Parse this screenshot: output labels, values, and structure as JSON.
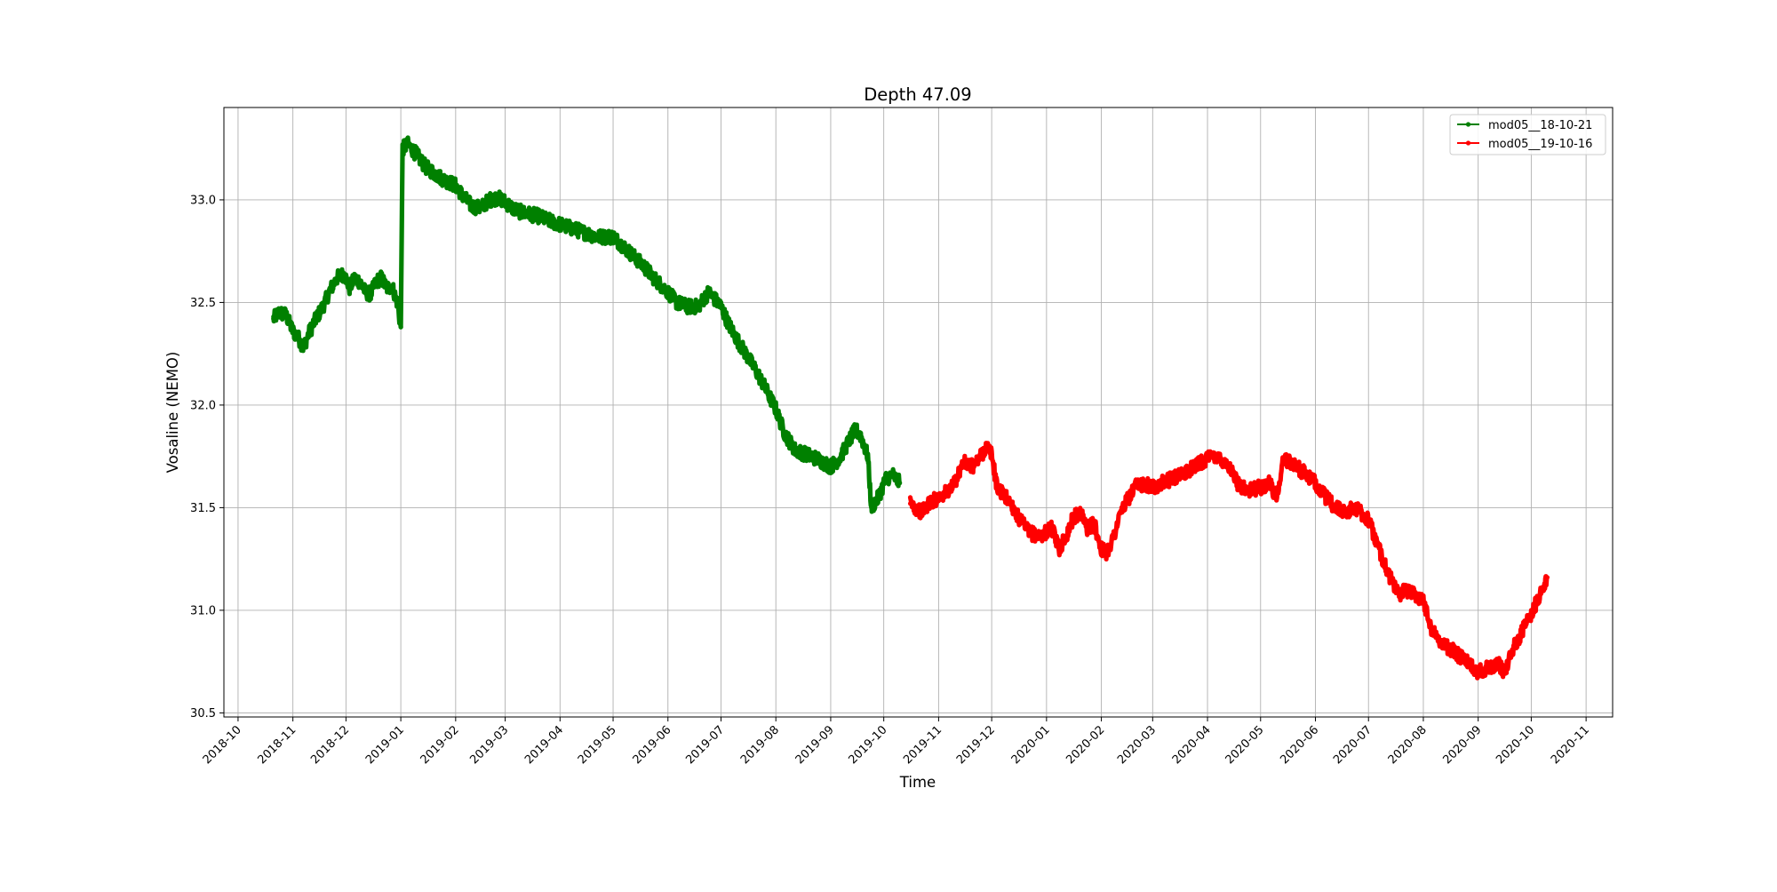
{
  "chart_data": {
    "type": "line",
    "title": "Depth 47.09",
    "xlabel": "Time",
    "ylabel": "Vosaline (NEMO)",
    "x_ticks": [
      "2018-10",
      "2018-11",
      "2018-12",
      "2019-01",
      "2019-02",
      "2019-03",
      "2019-04",
      "2019-05",
      "2019-06",
      "2019-07",
      "2019-08",
      "2019-09",
      "2019-10",
      "2019-11",
      "2019-12",
      "2020-01",
      "2020-02",
      "2020-03",
      "2020-04",
      "2020-05",
      "2020-06",
      "2020-07",
      "2020-08",
      "2020-09",
      "2020-10",
      "2020-11"
    ],
    "y_ticks": [
      "30.5",
      "31.0",
      "31.5",
      "32.0",
      "32.5",
      "33.0"
    ],
    "xlim": [
      "2018-09-23",
      "2020-11-16"
    ],
    "ylim": [
      30.48,
      33.45
    ],
    "grid": true,
    "legend_position": "top-right",
    "series": [
      {
        "name": "mod05__18-10-21",
        "color": "#008000",
        "x": [
          "2018-10-21",
          "2018-10-24",
          "2018-10-28",
          "2018-11-01",
          "2018-11-04",
          "2018-11-07",
          "2018-11-10",
          "2018-11-14",
          "2018-11-18",
          "2018-11-22",
          "2018-11-26",
          "2018-11-30",
          "2018-12-03",
          "2018-12-06",
          "2018-12-09",
          "2018-12-12",
          "2018-12-15",
          "2018-12-18",
          "2018-12-21",
          "2018-12-24",
          "2018-12-27",
          "2018-12-30",
          "2019-01-01",
          "2019-01-02",
          "2019-01-05",
          "2019-01-10",
          "2019-01-15",
          "2019-01-20",
          "2019-01-25",
          "2019-02-01",
          "2019-02-05",
          "2019-02-10",
          "2019-02-15",
          "2019-02-20",
          "2019-02-25",
          "2019-03-01",
          "2019-03-05",
          "2019-03-10",
          "2019-03-15",
          "2019-03-20",
          "2019-03-25",
          "2019-04-01",
          "2019-04-08",
          "2019-04-15",
          "2019-04-22",
          "2019-05-01",
          "2019-05-06",
          "2019-05-12",
          "2019-05-18",
          "2019-05-24",
          "2019-06-01",
          "2019-06-06",
          "2019-06-12",
          "2019-06-18",
          "2019-06-24",
          "2019-07-01",
          "2019-07-05",
          "2019-07-10",
          "2019-07-15",
          "2019-07-20",
          "2019-07-25",
          "2019-08-01",
          "2019-08-06",
          "2019-08-12",
          "2019-08-18",
          "2019-08-24",
          "2019-09-01",
          "2019-09-06",
          "2019-09-11",
          "2019-09-15",
          "2019-09-18",
          "2019-09-22",
          "2019-09-24",
          "2019-09-28",
          "2019-10-02",
          "2019-10-06",
          "2019-10-10"
        ],
        "y": [
          32.42,
          32.45,
          32.44,
          32.36,
          32.33,
          32.28,
          32.35,
          32.42,
          32.48,
          32.56,
          32.62,
          32.64,
          32.57,
          32.62,
          32.6,
          32.55,
          32.54,
          32.6,
          32.62,
          32.57,
          32.58,
          32.5,
          32.38,
          33.25,
          33.27,
          33.22,
          33.16,
          33.13,
          33.1,
          33.07,
          33.02,
          32.97,
          32.96,
          33.0,
          33.01,
          32.99,
          32.96,
          32.94,
          32.93,
          32.92,
          32.9,
          32.88,
          32.86,
          32.84,
          32.82,
          32.82,
          32.78,
          32.73,
          32.68,
          32.62,
          32.55,
          32.5,
          32.48,
          32.48,
          32.55,
          32.48,
          32.4,
          32.32,
          32.25,
          32.18,
          32.1,
          31.98,
          31.86,
          31.78,
          31.76,
          31.74,
          31.7,
          31.74,
          31.82,
          31.88,
          31.85,
          31.75,
          31.5,
          31.55,
          31.64,
          31.66,
          31.62
        ]
      },
      {
        "name": "mod05__19-10-16",
        "color": "#ff0000",
        "x": [
          "2019-10-16",
          "2019-10-22",
          "2019-10-28",
          "2019-11-03",
          "2019-11-09",
          "2019-11-15",
          "2019-11-20",
          "2019-11-24",
          "2019-11-28",
          "2019-12-01",
          "2019-12-04",
          "2019-12-08",
          "2019-12-12",
          "2019-12-16",
          "2019-12-22",
          "2019-12-28",
          "2020-01-04",
          "2020-01-08",
          "2020-01-12",
          "2020-01-16",
          "2020-01-20",
          "2020-01-24",
          "2020-01-28",
          "2020-02-01",
          "2020-02-04",
          "2020-02-08",
          "2020-02-12",
          "2020-02-16",
          "2020-02-20",
          "2020-02-25",
          "2020-03-01",
          "2020-03-06",
          "2020-03-12",
          "2020-03-18",
          "2020-03-24",
          "2020-04-01",
          "2020-04-06",
          "2020-04-12",
          "2020-04-18",
          "2020-04-24",
          "2020-05-01",
          "2020-05-06",
          "2020-05-10",
          "2020-05-14",
          "2020-05-19",
          "2020-05-24",
          "2020-06-01",
          "2020-06-06",
          "2020-06-12",
          "2020-06-18",
          "2020-06-24",
          "2020-07-01",
          "2020-07-06",
          "2020-07-12",
          "2020-07-18",
          "2020-07-24",
          "2020-08-01",
          "2020-08-06",
          "2020-08-12",
          "2020-08-18",
          "2020-08-24",
          "2020-09-01",
          "2020-09-06",
          "2020-09-12",
          "2020-09-16",
          "2020-09-20",
          "2020-09-26",
          "2020-10-01",
          "2020-10-06",
          "2020-10-10"
        ],
        "y": [
          31.52,
          31.48,
          31.53,
          31.56,
          31.6,
          31.72,
          31.7,
          31.74,
          31.8,
          31.76,
          31.6,
          31.56,
          31.52,
          31.45,
          31.38,
          31.36,
          31.4,
          31.3,
          31.36,
          31.45,
          31.48,
          31.4,
          31.42,
          31.3,
          31.28,
          31.36,
          31.48,
          31.54,
          31.6,
          31.62,
          31.6,
          31.62,
          31.64,
          31.66,
          31.7,
          31.74,
          31.75,
          31.72,
          31.62,
          31.58,
          31.6,
          31.62,
          31.55,
          31.74,
          31.72,
          31.68,
          31.62,
          31.56,
          31.5,
          31.48,
          31.5,
          31.44,
          31.32,
          31.18,
          31.08,
          31.1,
          31.05,
          30.9,
          30.84,
          30.8,
          30.76,
          30.7,
          30.72,
          30.74,
          30.7,
          30.8,
          30.9,
          30.98,
          31.08,
          31.16
        ]
      }
    ]
  }
}
